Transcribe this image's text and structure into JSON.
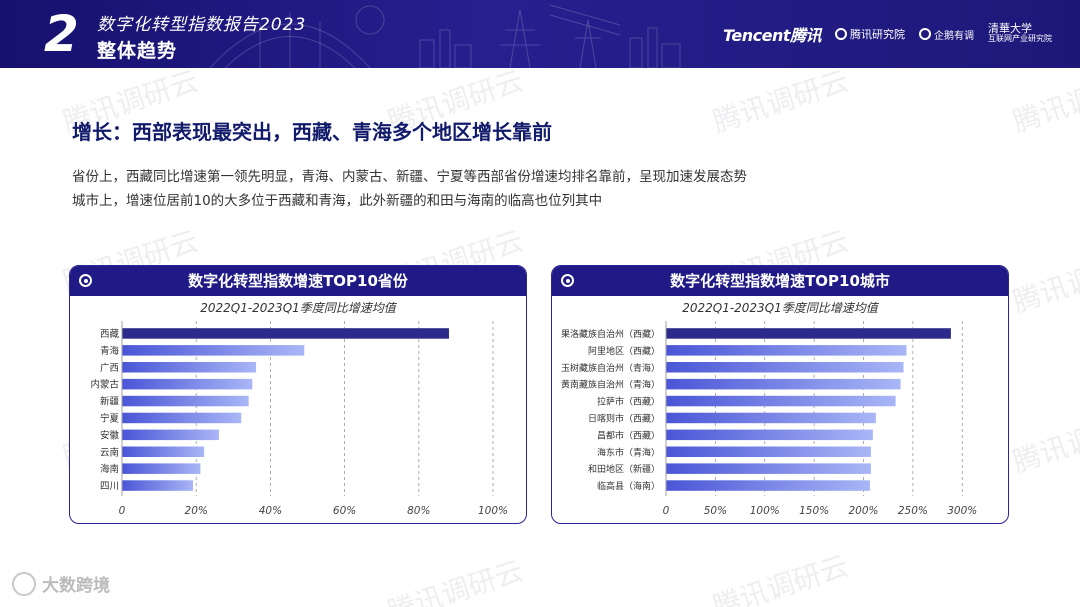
{
  "header": {
    "chapter_number": "2",
    "report_title": "数字化转型指数报告2023",
    "section_title": "整体趋势",
    "logos": {
      "tencent": "Tencent腾讯",
      "research_institute": "腾讯研究院",
      "qipeng": "企鹅有调",
      "tsinghua": "清華大学",
      "tsinghua_sub": "互联网产业研究院"
    }
  },
  "headline": "增长：西部表现最突出，西藏、青海多个地区增长靠前",
  "description": [
    "省份上，西藏同比增速第一领先明显，青海、内蒙古、新疆、宁夏等西部省份增速均排名靠前，呈现加速发展态势",
    "城市上，增速位居前10的大多位于西藏和青海，此外新疆的和田与海南的临高也位列其中"
  ],
  "watermark_text": "腾讯调研云",
  "footer_brand": "大数跨境",
  "colors": {
    "header_bg": "#1f1a85",
    "bar_top": "#2c2a8a",
    "bar_start": "#4a56d6",
    "bar_end": "#a9b6f6"
  },
  "chart_data": [
    {
      "type": "bar",
      "orientation": "horizontal",
      "title": "数字化转型指数增速TOP10省份",
      "subtitle": "2022Q1-2023Q1季度同比增速均值",
      "categories": [
        "西藏",
        "青海",
        "广西",
        "内蒙古",
        "新疆",
        "宁夏",
        "安徽",
        "云南",
        "海南",
        "四川"
      ],
      "values": [
        88,
        49,
        36,
        35,
        34,
        32,
        26,
        22,
        21,
        19
      ],
      "xlim": [
        0,
        100
      ],
      "xticks": [
        "0",
        "20%",
        "40%",
        "60%",
        "80%",
        "100%"
      ],
      "grid": "vertical-dashed"
    },
    {
      "type": "bar",
      "orientation": "horizontal",
      "title": "数字化转型指数增速TOP10城市",
      "subtitle": "2022Q1-2023Q1季度同比增速均值",
      "categories": [
        "果洛藏族自治州（西藏）",
        "阿里地区（西藏）",
        "玉树藏族自治州（青海）",
        "黄南藏族自治州（青海）",
        "拉萨市（西藏）",
        "日喀则市（西藏）",
        "昌都市（西藏）",
        "海东市（青海）",
        "和田地区（新疆）",
        "临高县（海南）"
      ],
      "values": [
        288,
        243,
        240,
        237,
        232,
        212,
        209,
        207,
        207,
        206
      ],
      "xlim": [
        0,
        320
      ],
      "xticks": [
        "0",
        "50%",
        "100%",
        "150%",
        "200%",
        "250%",
        "300%"
      ],
      "grid": "vertical-dashed"
    }
  ]
}
